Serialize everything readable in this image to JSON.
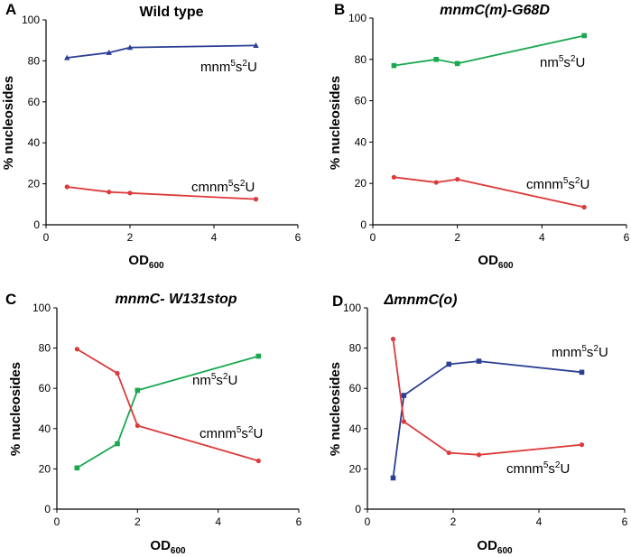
{
  "chart_data": [
    {
      "panel": "A",
      "type": "line",
      "title": "Wild type",
      "title_italic": false,
      "xlabel": "OD",
      "xlabel_sub": "600",
      "ylabel": "% nucleosides",
      "xlim": [
        0,
        6
      ],
      "ylim": [
        0,
        100
      ],
      "xticks": [
        0,
        2,
        4,
        6
      ],
      "yticks": [
        0,
        20,
        40,
        60,
        80,
        100
      ],
      "series": [
        {
          "name": "mnm5s2U",
          "label_main": "mnm",
          "label_sup1": "5",
          "label_mid": "s",
          "label_sup2": "2",
          "label_end": "U",
          "color": "#2b3f93",
          "marker": "triangle",
          "x": [
            0.5,
            1.5,
            2.0,
            5.0
          ],
          "y": [
            81.5,
            84,
            86.5,
            87.5
          ]
        },
        {
          "name": "cmnm5s2U",
          "label_main": "cmnm",
          "label_sup1": "5",
          "label_mid": "s",
          "label_sup2": "2",
          "label_end": "U",
          "color": "#dd3a3a",
          "marker": "circle",
          "x": [
            0.5,
            1.5,
            2.0,
            5.0
          ],
          "y": [
            18.5,
            16,
            15.5,
            12.5
          ]
        }
      ]
    },
    {
      "panel": "B",
      "type": "line",
      "title": "mnmC(m)-G68D",
      "title_italic": true,
      "xlabel": "OD",
      "xlabel_sub": "600",
      "ylabel": "% nucleosides",
      "xlim": [
        0,
        6
      ],
      "ylim": [
        0,
        100
      ],
      "xticks": [
        0,
        2,
        4,
        6
      ],
      "yticks": [
        0,
        20,
        40,
        60,
        80,
        100
      ],
      "series": [
        {
          "name": "nm5s2U",
          "label_main": "nm",
          "label_sup1": "5",
          "label_mid": "s",
          "label_sup2": "2",
          "label_end": "U",
          "color": "#1aa84f",
          "marker": "square",
          "x": [
            0.5,
            1.5,
            2.0,
            5.0
          ],
          "y": [
            77,
            80,
            78,
            91.5
          ]
        },
        {
          "name": "cmnm5s2U",
          "label_main": "cmnm",
          "label_sup1": "5",
          "label_mid": "s",
          "label_sup2": "2",
          "label_end": "U",
          "color": "#dd3a3a",
          "marker": "circle",
          "x": [
            0.5,
            1.5,
            2.0,
            5.0
          ],
          "y": [
            23,
            20.5,
            22,
            8.5
          ]
        }
      ]
    },
    {
      "panel": "C",
      "type": "line",
      "title": "mnmC- W131stop",
      "title_italic": true,
      "xlabel": "OD",
      "xlabel_sub": "600",
      "ylabel": "% nucleosides",
      "xlim": [
        0,
        6
      ],
      "ylim": [
        0,
        100
      ],
      "xticks": [
        0,
        2,
        4,
        6
      ],
      "yticks": [
        0,
        20,
        40,
        60,
        80,
        100
      ],
      "series": [
        {
          "name": "nm5s2U",
          "label_main": "nm",
          "label_sup1": "5",
          "label_mid": "s",
          "label_sup2": "2",
          "label_end": "U",
          "color": "#1aa84f",
          "marker": "square",
          "x": [
            0.5,
            1.5,
            2.0,
            5.0
          ],
          "y": [
            20.5,
            32.5,
            59,
            76
          ]
        },
        {
          "name": "cmnm5s2U",
          "label_main": "cmnm",
          "label_sup1": "5",
          "label_mid": "s",
          "label_sup2": "2",
          "label_end": "U",
          "color": "#dd3a3a",
          "marker": "circle",
          "x": [
            0.5,
            1.5,
            2.0,
            5.0
          ],
          "y": [
            79.5,
            67.5,
            41.5,
            24
          ]
        }
      ]
    },
    {
      "panel": "D",
      "type": "line",
      "title": "ΔmnmC(o)",
      "title_italic": true,
      "xlabel": "OD",
      "xlabel_sub": "600",
      "ylabel": "% nucleosides",
      "xlim": [
        0,
        6
      ],
      "ylim": [
        0,
        100
      ],
      "xticks": [
        0,
        2,
        4,
        6
      ],
      "yticks": [
        0,
        20,
        40,
        60,
        80,
        100
      ],
      "series": [
        {
          "name": "mnm5s2U",
          "label_main": "mnm",
          "label_sup1": "5",
          "label_mid": "s",
          "label_sup2": "2",
          "label_end": "U",
          "color": "#2b3f93",
          "marker": "square",
          "x": [
            0.6,
            0.85,
            1.9,
            2.6,
            5.0
          ],
          "y": [
            15.5,
            56.5,
            72,
            73.5,
            68
          ]
        },
        {
          "name": "cmnm5s2U",
          "label_main": "cmnm",
          "label_sup1": "5",
          "label_mid": "s",
          "label_sup2": "2",
          "label_end": "U",
          "color": "#dd3a3a",
          "marker": "circle",
          "x": [
            0.6,
            0.85,
            1.9,
            2.6,
            5.0
          ],
          "y": [
            84.5,
            43.5,
            28,
            27,
            32
          ]
        }
      ]
    }
  ]
}
